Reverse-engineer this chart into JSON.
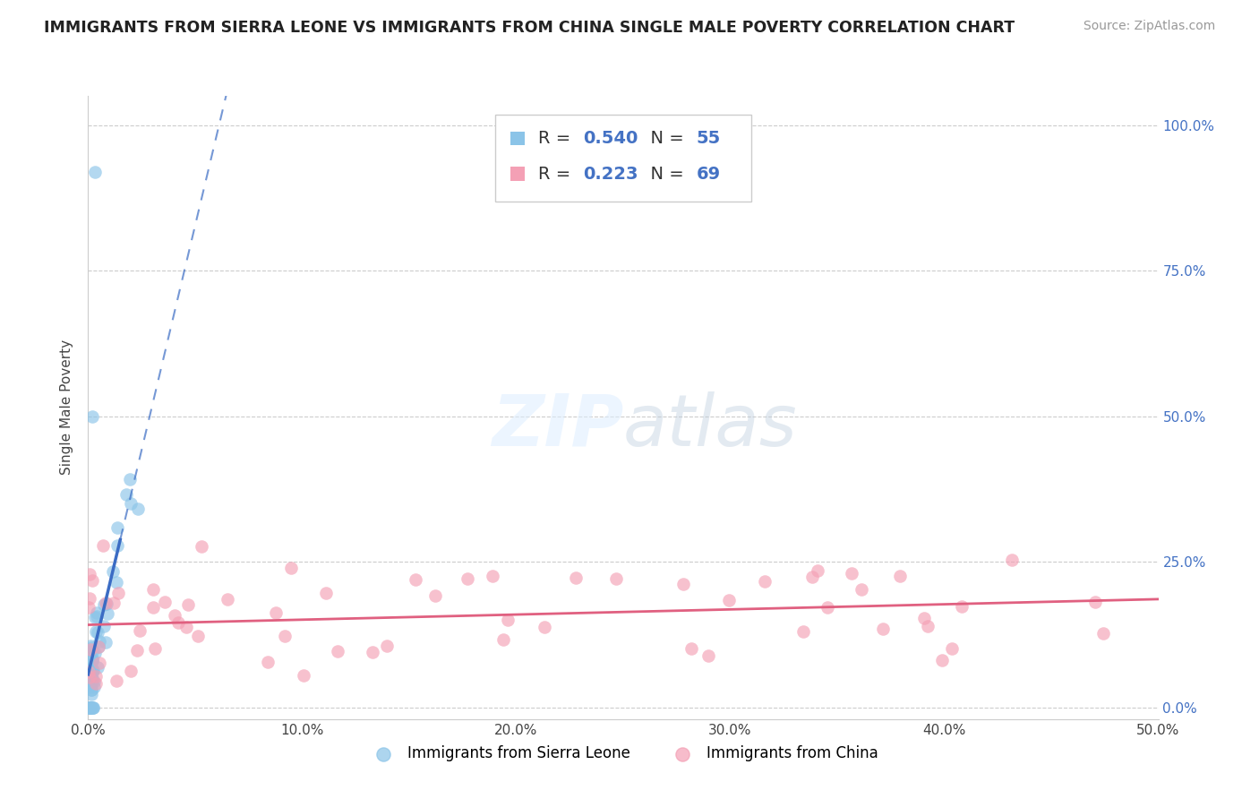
{
  "title": "IMMIGRANTS FROM SIERRA LEONE VS IMMIGRANTS FROM CHINA SINGLE MALE POVERTY CORRELATION CHART",
  "source": "Source: ZipAtlas.com",
  "ylabel": "Single Male Poverty",
  "xlim": [
    0.0,
    0.5
  ],
  "ylim": [
    -0.02,
    1.05
  ],
  "xticks": [
    0.0,
    0.1,
    0.2,
    0.3,
    0.4,
    0.5
  ],
  "yticks": [
    0.0,
    0.25,
    0.5,
    0.75,
    1.0
  ],
  "sierra_leone_color": "#8BC4E8",
  "china_color": "#F4A0B5",
  "sierra_leone_R": 0.54,
  "sierra_leone_N": 55,
  "china_R": 0.223,
  "china_N": 69,
  "sierra_leone_trend_color": "#3B6CC4",
  "china_trend_color": "#E06080",
  "background_color": "#FFFFFF",
  "legend_label_sl": "Immigrants from Sierra Leone",
  "legend_label_ch": "Immigrants from China"
}
